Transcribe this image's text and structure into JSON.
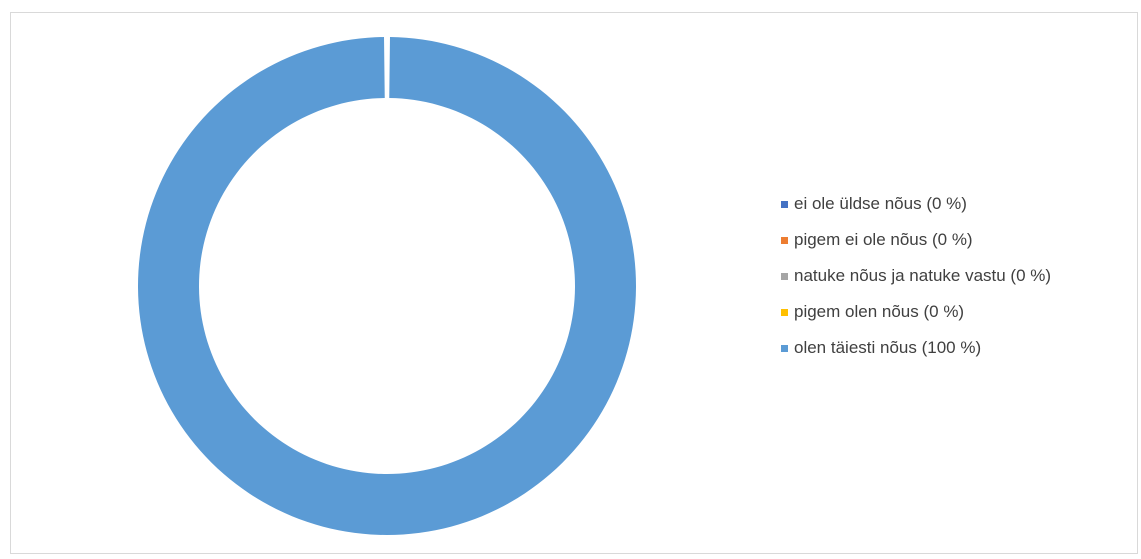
{
  "caption": {
    "text": "",
    "color": "#4ea72e"
  },
  "chart_data": {
    "type": "pie",
    "variant": "donut",
    "title": "",
    "slices": [
      {
        "label": "ei ole üldse nõus (0 %)",
        "value": 0,
        "color": "#4472c4"
      },
      {
        "label": "pigem ei ole nõus (0 %)",
        "value": 0,
        "color": "#ed7d31"
      },
      {
        "label": "natuke nõus ja natuke vastu (0 %)",
        "value": 0,
        "color": "#a5a5a5"
      },
      {
        "label": "pigem olen nõus (0 %)",
        "value": 0,
        "color": "#ffc000"
      },
      {
        "label": "olen täiesti nõus (100 %)",
        "value": 100,
        "color": "#5b9bd5"
      }
    ],
    "legend_position": "right"
  }
}
